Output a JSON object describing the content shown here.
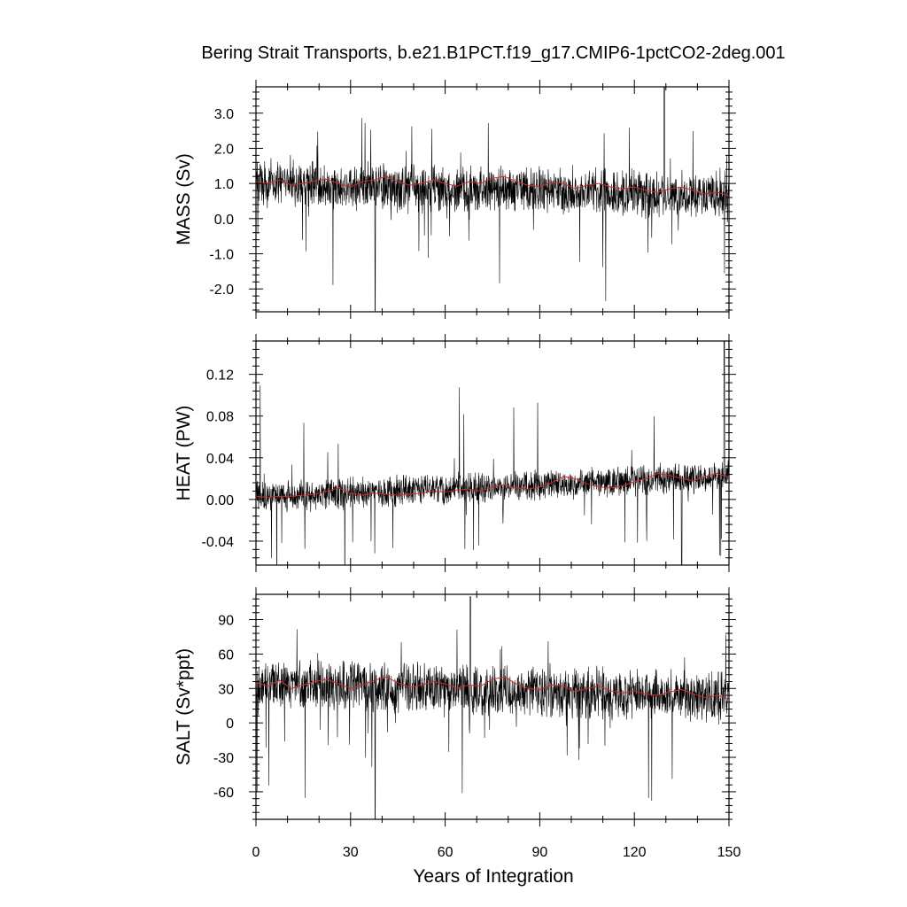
{
  "chart_data": {
    "title": "Bering Strait Transports, b.e21.B1PCT.f19_g17.CMIP6-1pctCO2-2deg.001",
    "xlabel": "Years of Integration",
    "xlim": [
      0,
      150
    ],
    "xticks": [
      0,
      30,
      60,
      90,
      120,
      150
    ],
    "xtick_labels": [
      "0",
      "30",
      "60",
      "90",
      "120",
      "150"
    ],
    "colors": {
      "raw": "#000000",
      "smoothed": "#d62728"
    },
    "panels": [
      {
        "type": "line",
        "ylabel": "MASS (Sv)",
        "ylim": [
          -2.65,
          3.75
        ],
        "yticks": [
          3.0,
          2.0,
          1.0,
          0.0,
          -1.0,
          -2.0
        ],
        "ytick_labels": [
          "3.0",
          "2.0",
          "1.0",
          "0.0",
          "-1.0",
          "-2.0"
        ],
        "mean": 1.0,
        "trend_end": 0.65,
        "noise": 0.55,
        "spike_min": -2.65,
        "spike_max": 3.75,
        "spike_min_year": 37.8,
        "spike_max_year": 129.5,
        "series": [
          {
            "values_desc": "raw"
          },
          {
            "smoothed_values": [
              1.05,
              1.0,
              1.1,
              0.95,
              1.0,
              1.08,
              1.12,
              1.0,
              0.9,
              1.05,
              1.1,
              1.2,
              1.05,
              0.95,
              1.0,
              1.1,
              1.0,
              0.92,
              1.05,
              1.0,
              1.15,
              1.2,
              1.05,
              0.95,
              0.9,
              1.05,
              1.0,
              0.85,
              0.95,
              1.0,
              0.9,
              0.85,
              0.9,
              0.8,
              0.75,
              0.85,
              0.9,
              0.8,
              0.7,
              0.75,
              0.65
            ]
          }
        ]
      },
      {
        "type": "line",
        "ylabel": "HEAT (PW)",
        "ylim": [
          -0.063,
          0.152
        ],
        "yticks": [
          0.12,
          0.08,
          0.04,
          0.0,
          -0.04
        ],
        "ytick_labels": [
          "0.12",
          "0.08",
          "0.04",
          "0.00",
          "-0.04"
        ],
        "mean": 0.002,
        "trend_end": 0.022,
        "noise": 0.012,
        "spike_min": -0.07,
        "spike_max": 0.152,
        "spike_min_year": 135,
        "spike_max_year": 148.5,
        "series": [
          {
            "values_desc": "raw"
          },
          {
            "smoothed_values": [
              0.003,
              0.002,
              0.003,
              0.003,
              0.004,
              0.005,
              0.008,
              0.011,
              0.006,
              0.004,
              0.006,
              0.005,
              0.004,
              0.005,
              0.006,
              0.008,
              0.007,
              0.009,
              0.01,
              0.008,
              0.012,
              0.014,
              0.011,
              0.01,
              0.012,
              0.016,
              0.022,
              0.02,
              0.015,
              0.012,
              0.011,
              0.013,
              0.017,
              0.02,
              0.025,
              0.023,
              0.02,
              0.018,
              0.022,
              0.025,
              0.021
            ]
          }
        ]
      },
      {
        "type": "line",
        "ylabel": "SALT (Sv*ppt)",
        "ylim": [
          -84,
          112
        ],
        "yticks": [
          90,
          60,
          30,
          0,
          -30,
          -60
        ],
        "ytick_labels": [
          "90",
          "60",
          "30",
          "0",
          "-30",
          "-60"
        ],
        "mean": 34,
        "trend_end": 22,
        "noise": 18,
        "spike_min": -84,
        "spike_max": 110,
        "spike_min_year": 37.8,
        "spike_max_year": 68,
        "series": [
          {
            "values_desc": "raw"
          },
          {
            "smoothed_values": [
              35,
              32,
              37,
              30,
              33,
              36,
              38,
              34,
              30,
              33,
              37,
              40,
              35,
              31,
              33,
              36,
              34,
              30,
              33,
              32,
              38,
              40,
              34,
              30,
              29,
              33,
              32,
              27,
              30,
              32,
              28,
              26,
              28,
              25,
              24,
              27,
              29,
              25,
              22,
              24,
              21
            ]
          }
        ]
      }
    ]
  }
}
